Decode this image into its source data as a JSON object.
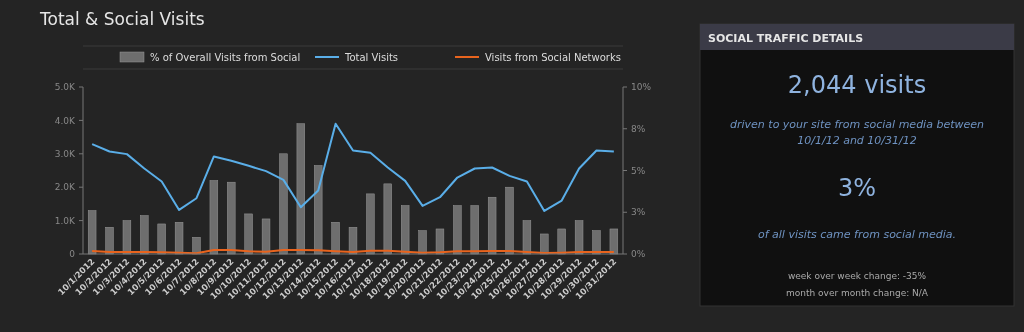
{
  "chart_data": [
    {
      "type": "bar",
      "title": "Total & Social Visits",
      "categories": [
        "10/1/2012",
        "10/2/2012",
        "10/3/2012",
        "10/4/2012",
        "10/5/2012",
        "10/6/2012",
        "10/7/2012",
        "10/8/2012",
        "10/9/2012",
        "10/10/2012",
        "10/11/2012",
        "10/12/2012",
        "10/13/2012",
        "10/14/2012",
        "10/15/2012",
        "10/16/2012",
        "10/17/2012",
        "10/18/2012",
        "10/19/2012",
        "10/20/2012",
        "10/21/2012",
        "10/22/2012",
        "10/23/2012",
        "10/24/2012",
        "10/25/2012",
        "10/26/2012",
        "10/27/2012",
        "10/28/2012",
        "10/29/2012",
        "10/30/2012",
        "10/31/2012"
      ],
      "series": [
        {
          "name": "% of Overall Visits from Social",
          "type": "bar",
          "axis": "y2",
          "color": "#6e6e6e",
          "values": [
            2.6,
            1.6,
            2.0,
            2.3,
            1.8,
            1.9,
            1.0,
            4.4,
            4.3,
            2.4,
            2.1,
            6.0,
            7.8,
            5.3,
            1.9,
            1.6,
            3.6,
            4.2,
            2.9,
            1.4,
            1.5,
            2.9,
            2.9,
            3.4,
            4.0,
            2.0,
            1.2,
            1.5,
            2.0,
            1.4,
            1.5
          ]
        },
        {
          "name": "Total Visits",
          "type": "line",
          "color": "#5aaee8",
          "values": [
            3290,
            3070,
            2990,
            2560,
            2170,
            1320,
            1670,
            2920,
            2790,
            2640,
            2480,
            2220,
            1400,
            1900,
            3900,
            3100,
            3030,
            2590,
            2190,
            1440,
            1700,
            2290,
            2560,
            2590,
            2340,
            2170,
            1290,
            1600,
            2560,
            3100,
            3070
          ]
        },
        {
          "name": "Visits from Social Networks",
          "type": "line",
          "color": "#e8641e",
          "values": [
            90,
            60,
            60,
            60,
            50,
            40,
            20,
            120,
            120,
            80,
            70,
            120,
            120,
            110,
            80,
            60,
            100,
            100,
            70,
            40,
            50,
            80,
            80,
            90,
            90,
            60,
            30,
            40,
            60,
            60,
            60
          ]
        }
      ],
      "ylim": [
        0,
        5000
      ],
      "yticks": [
        0,
        {
          "value": 1000,
          "label": "1.0K"
        },
        {
          "value": 2000,
          "label": "2.0K"
        },
        {
          "value": 3000,
          "label": "3.0K"
        },
        {
          "value": 4000,
          "label": "4.0K"
        },
        {
          "value": 5000,
          "label": "5.0K"
        }
      ],
      "y2lim": [
        0,
        10
      ],
      "y2ticks": [
        {
          "value": 0,
          "label": "0%"
        },
        {
          "value": 2.5,
          "label": "3%"
        },
        {
          "value": 5,
          "label": "5%"
        },
        {
          "value": 7.5,
          "label": "8%"
        },
        {
          "value": 10,
          "label": "10%"
        }
      ],
      "legend": "top",
      "grid": false,
      "marker": "none"
    },
    {
      "type": "other",
      "title": "SOCIAL TRAFFIC DETAILS",
      "annotations": [
        "2,044 visits",
        "driven to your site from social media between",
        "10/1/12 and 10/31/12",
        "3%",
        "of all visits came from social media.",
        "week over week change: -35%",
        "month over month change: N/A"
      ]
    }
  ]
}
